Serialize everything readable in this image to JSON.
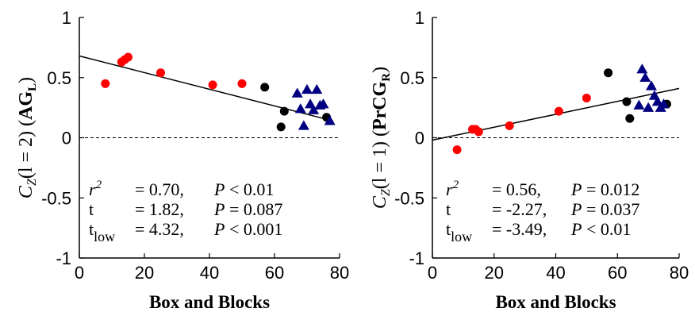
{
  "chart_data": [
    {
      "type": "scatter",
      "xlabel": "Box and Blocks",
      "ylabel": {
        "main": "C",
        "sub": "Z",
        "arg": "(l = 2)",
        "region": "AG",
        "region_sub": "L"
      },
      "xlim": [
        0,
        80
      ],
      "ylim": [
        -1,
        1
      ],
      "xticks": [
        "0",
        "20",
        "40",
        "60",
        "80"
      ],
      "yticks": [
        "-1",
        "-0.5",
        "0",
        "0.5",
        "1"
      ],
      "grid": false,
      "zero_line": "dashed",
      "fit_line": {
        "x": [
          0,
          78
        ],
        "y": [
          0.68,
          0.14
        ]
      },
      "groups": [
        {
          "marker": "circle",
          "color": "#ff0000",
          "x": [
            8,
            13,
            14,
            15,
            25,
            41,
            50
          ],
          "y": [
            0.45,
            0.63,
            0.65,
            0.67,
            0.54,
            0.44,
            0.45
          ]
        },
        {
          "marker": "circle",
          "color": "#000000",
          "x": [
            57,
            62,
            63,
            76
          ],
          "y": [
            0.42,
            0.09,
            0.22,
            0.17
          ]
        },
        {
          "marker": "triangle",
          "color": "#000080",
          "x": [
            67,
            68,
            69,
            70,
            71,
            72,
            73,
            74,
            75,
            77
          ],
          "y": [
            0.37,
            0.24,
            0.1,
            0.4,
            0.28,
            0.23,
            0.4,
            0.27,
            0.28,
            0.14
          ]
        }
      ],
      "stats": [
        {
          "label": "r",
          "sup": "2",
          "value": "0.70,",
          "p": "P < 0.01"
        },
        {
          "label": "t",
          "value": "1.82,",
          "p": "P = 0.087"
        },
        {
          "label": "t",
          "sub": "low",
          "value": "4.32,",
          "p": "P < 0.001"
        }
      ]
    },
    {
      "type": "scatter",
      "xlabel": "Box and Blocks",
      "ylabel": {
        "main": "C",
        "sub": "Z",
        "arg": "(l = 1)",
        "region": "PrCG",
        "region_sub": "R"
      },
      "xlim": [
        0,
        80
      ],
      "ylim": [
        -1,
        1
      ],
      "xticks": [
        "0",
        "20",
        "40",
        "60",
        "80"
      ],
      "yticks": [
        "-1",
        "-0.5",
        "0",
        "0.5",
        "1"
      ],
      "grid": false,
      "zero_line": "dashed",
      "fit_line": {
        "x": [
          0,
          80
        ],
        "y": [
          -0.02,
          0.41
        ]
      },
      "groups": [
        {
          "marker": "circle",
          "color": "#ff0000",
          "x": [
            8,
            13,
            14,
            15,
            25,
            41,
            50
          ],
          "y": [
            -0.1,
            0.07,
            0.07,
            0.05,
            0.1,
            0.22,
            0.33
          ]
        },
        {
          "marker": "circle",
          "color": "#000000",
          "x": [
            57,
            63,
            64,
            76
          ],
          "y": [
            0.54,
            0.3,
            0.16,
            0.28
          ]
        },
        {
          "marker": "triangle",
          "color": "#000080",
          "x": [
            67,
            68,
            69,
            70,
            71,
            72,
            73,
            74,
            75
          ],
          "y": [
            0.27,
            0.57,
            0.5,
            0.25,
            0.43,
            0.35,
            0.3,
            0.25,
            0.28
          ]
        }
      ],
      "stats": [
        {
          "label": "r",
          "sup": "2",
          "value": "0.56,",
          "p": "P = 0.012"
        },
        {
          "label": "t",
          "value": "-2.27,",
          "p": "P = 0.037"
        },
        {
          "label": "t",
          "sub": "low",
          "value": "-3.49,",
          "p": "P < 0.01"
        }
      ]
    }
  ]
}
